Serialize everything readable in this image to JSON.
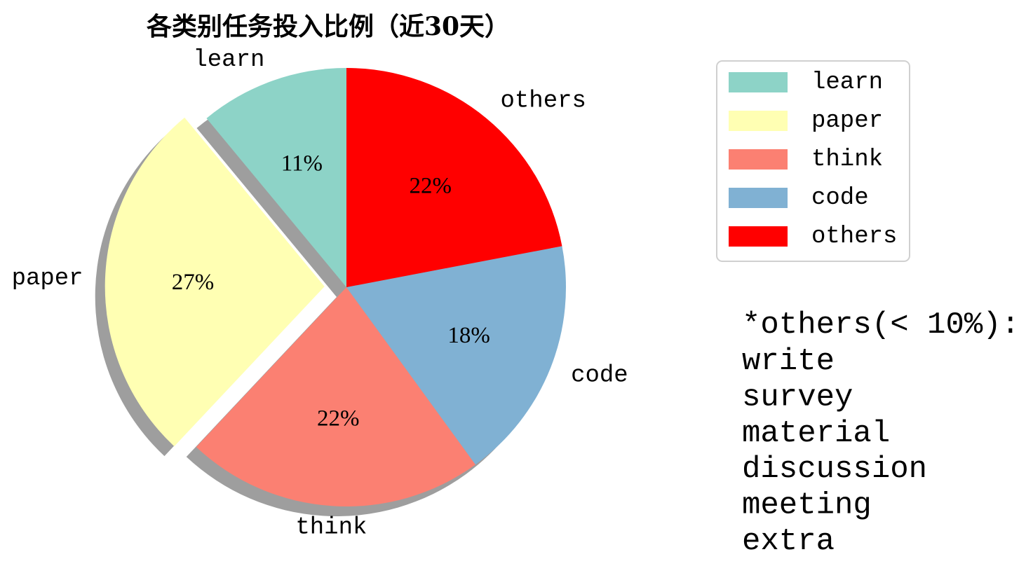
{
  "chart_data": {
    "type": "pie",
    "title": "各类别任务投入比例（近30天）",
    "categories": [
      "learn",
      "paper",
      "think",
      "code",
      "others"
    ],
    "values": [
      11,
      27,
      22,
      18,
      22
    ],
    "value_labels": [
      "11%",
      "27%",
      "22%",
      "18%",
      "22%"
    ],
    "colors": [
      "#8dd3c7",
      "#ffffb3",
      "#fb8072",
      "#80b1d3",
      "#ff0000"
    ],
    "explode": [
      0,
      0.1,
      0,
      0,
      0
    ],
    "start_angle_deg": 90,
    "direction": "counterclockwise",
    "shadow": true,
    "legend": {
      "position": "right",
      "entries": [
        "learn",
        "paper",
        "think",
        "code",
        "others"
      ]
    }
  },
  "note": {
    "header": "*others(< 10%):",
    "items": [
      "write",
      "survey",
      "material",
      "discussion",
      "meeting",
      "extra"
    ]
  }
}
